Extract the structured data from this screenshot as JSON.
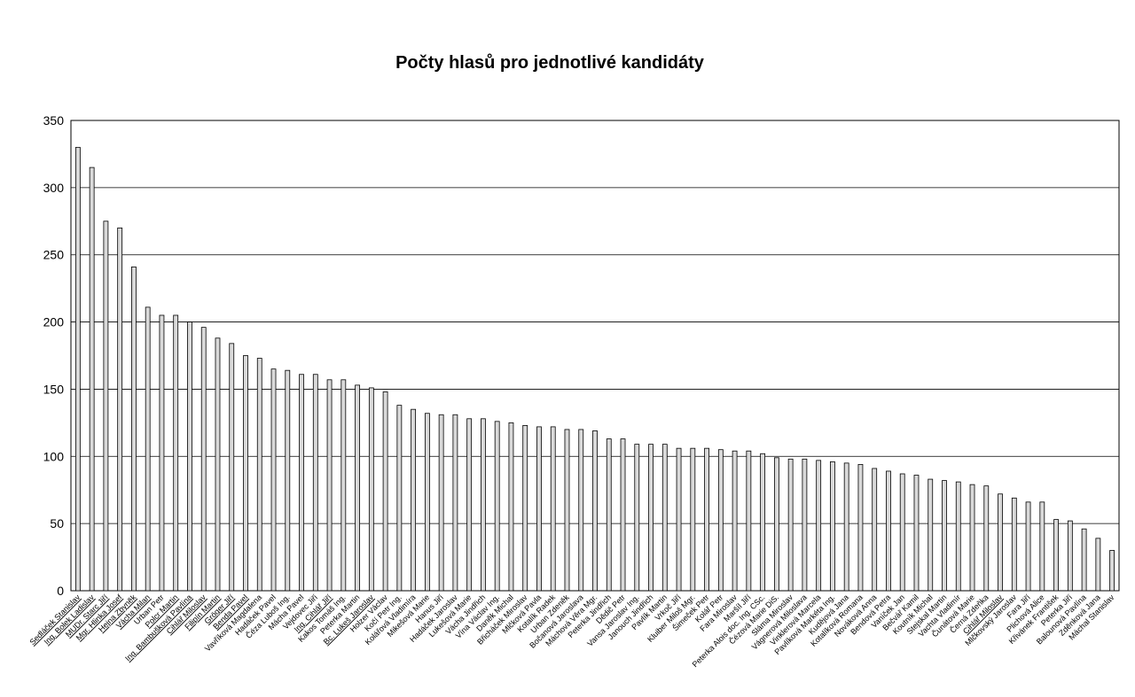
{
  "chart_data": {
    "type": "bar",
    "title": "Počty hlasů pro jednotlivé kandidáty",
    "xlabel": "",
    "ylabel": "",
    "ylim": [
      0,
      350
    ],
    "yticks": [
      0,
      50,
      100,
      150,
      200,
      250,
      300,
      350
    ],
    "grid": "horizontal",
    "bar_color": "#d9d9d9",
    "categories": [
      "Sedláček Stanislav",
      "Ing. Bolek Ladislav",
      "MUDr. Starc Jiří",
      "Mgr. Hlinka Josef",
      "Hejna Zbyněk",
      "Vácha Milan",
      "Urban Petr",
      "Polcr Martin",
      "Ing. Bambušková Pavlína",
      "Cihlář Miloslav",
      "Filipín Martin",
      "Gröger Jiří",
      "Benda Pavel",
      "Vavříková Magdalena",
      "Hadáček Pavel",
      "Čéza Luboš Ing.",
      "Mácha Pavel",
      "Vejdovec Jiří",
      "Ing. Cihlář Jiří",
      "Kakos Tomáš Ing.",
      "Peterka Martin",
      "Bc. Lukeš Jaroslav",
      "Holzer Václav",
      "Kočí Petr Ing.",
      "Kolářová Vladimíra",
      "Mikešová Marie",
      "Hanus Jiří",
      "Hadáček Jaroslav",
      "Lukešová Marie",
      "Vácha Jindřich",
      "Vína Václav Ing.",
      "Daněk Michal",
      "Břicháček Miroslav",
      "Mlčková Pavla",
      "Kotalík Radek",
      "Urban Zdeněk",
      "Bočanová Jaroslava",
      "Máchová Věra Mgr.",
      "Peterka Jindřich",
      "Dědič Petr",
      "Vansa Jaroslav Ing.",
      "Janouch Jindřich",
      "Pavlík Martin",
      "Vrkoč Jiří",
      "Kluiber Miloš Mgr.",
      "Šimeček Petr",
      "Kolář Petr",
      "Fara Miroslav",
      "Maršíl Jiří",
      "Peterka Alois doc. Ing. CSc.",
      "Čézová Marie DiS.",
      "Sláma Miroslav",
      "Vágnerová Miloslava",
      "Vinklerová Marcela",
      "Pavlíková Markéta Ing.",
      "Kudějová Jana",
      "Kotalíková Romana",
      "Nováková Anna",
      "Bendová Petra",
      "Vaníček Jan",
      "Bečvář Kamil",
      "Koutník Michal",
      "Stejskal Martin",
      "Vachta Vladimír",
      "Čunátová Marie",
      "Černá Zdeňka",
      "Cihlář Miloslav",
      "Mlčkovský Jaroslav",
      "Fara Jiří",
      "Plichová Alice",
      "Křivánek František",
      "Peterka Jiří",
      "Balounová Pavlína",
      "Zděnková Jana",
      "Máchal Stanislav"
    ],
    "underlined": [
      "Sedláček Stanislav",
      "Ing. Bolek Ladislav",
      "MUDr. Starc Jiří",
      "Mgr. Hlinka Josef",
      "Hejna Zbyněk",
      "Vácha Milan",
      "Polcr Martin",
      "Ing. Bambušková Pavlína",
      "Cihlář Miloslav",
      "Filipín Martin",
      "Gröger Jiří",
      "Benda Pavel",
      "Ing. Cihlář Jiří",
      "Bc. Lukeš Jaroslav"
    ],
    "values": [
      330,
      315,
      275,
      270,
      241,
      211,
      205,
      205,
      200,
      196,
      188,
      184,
      175,
      173,
      165,
      164,
      161,
      161,
      157,
      157,
      153,
      151,
      148,
      138,
      135,
      132,
      131,
      131,
      128,
      128,
      126,
      125,
      123,
      122,
      122,
      120,
      120,
      119,
      113,
      113,
      109,
      109,
      109,
      106,
      106,
      106,
      105,
      104,
      104,
      102,
      99,
      98,
      98,
      97,
      96,
      95,
      94,
      91,
      89,
      87,
      86,
      83,
      82,
      81,
      79,
      78,
      72,
      69,
      66,
      66,
      53,
      52,
      46,
      39,
      30
    ]
  }
}
